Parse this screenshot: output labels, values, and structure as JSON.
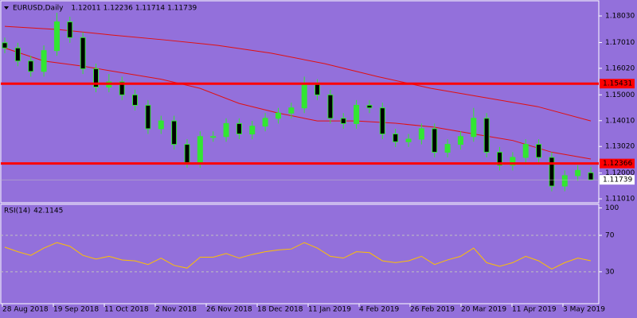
{
  "chart_data": [
    {
      "type": "candlestick",
      "symbol": "EURUSD,Daily",
      "categories": [
        "28 Aug 2018",
        "19 Sep 2018",
        "11 Oct 2018",
        "2 Nov 2018",
        "26 Nov 2018",
        "18 Dec 2018",
        "11 Jan 2019",
        "4 Feb 2019",
        "26 Feb 2019",
        "20 Mar 2019",
        "11 Apr 2019",
        "3 May 2019"
      ],
      "open": [
        1.17,
        1.168,
        1.163,
        1.159,
        1.167,
        1.178,
        1.172,
        1.16,
        1.153,
        1.155,
        1.15,
        1.146,
        1.137,
        1.14,
        1.131,
        1.124,
        1.134,
        1.134,
        1.139,
        1.135,
        1.138,
        1.141,
        1.143,
        1.145,
        1.154,
        1.15,
        1.141,
        1.139,
        1.146,
        1.145,
        1.135,
        1.132,
        1.133,
        1.137,
        1.128,
        1.131,
        1.134,
        1.141,
        1.128,
        1.123,
        1.126,
        1.131,
        1.126,
        1.115,
        1.119,
        1.12011
      ],
      "high": [
        1.172,
        1.17,
        1.165,
        1.169,
        1.1815,
        1.18,
        1.174,
        1.162,
        1.158,
        1.157,
        1.152,
        1.148,
        1.142,
        1.142,
        1.133,
        1.136,
        1.136,
        1.141,
        1.141,
        1.14,
        1.143,
        1.145,
        1.147,
        1.157,
        1.156,
        1.152,
        1.143,
        1.148,
        1.148,
        1.147,
        1.137,
        1.135,
        1.139,
        1.139,
        1.133,
        1.136,
        1.145,
        1.143,
        1.13,
        1.128,
        1.133,
        1.133,
        1.128,
        1.121,
        1.123,
        1.12236
      ],
      "low": [
        1.166,
        1.161,
        1.157,
        1.157,
        1.165,
        1.17,
        1.158,
        1.151,
        1.151,
        1.148,
        1.144,
        1.135,
        1.135,
        1.129,
        1.122,
        1.122,
        1.132,
        1.132,
        1.133,
        1.133,
        1.136,
        1.139,
        1.141,
        1.143,
        1.148,
        1.139,
        1.137,
        1.137,
        1.143,
        1.133,
        1.13,
        1.13,
        1.131,
        1.126,
        1.126,
        1.129,
        1.132,
        1.126,
        1.121,
        1.121,
        1.124,
        1.124,
        1.113,
        1.113,
        1.117,
        1.11714
      ],
      "close": [
        1.168,
        1.163,
        1.159,
        1.167,
        1.178,
        1.172,
        1.16,
        1.153,
        1.155,
        1.15,
        1.146,
        1.137,
        1.14,
        1.131,
        1.124,
        1.134,
        1.134,
        1.139,
        1.135,
        1.138,
        1.141,
        1.143,
        1.145,
        1.154,
        1.15,
        1.141,
        1.139,
        1.146,
        1.145,
        1.135,
        1.132,
        1.133,
        1.137,
        1.128,
        1.131,
        1.134,
        1.141,
        1.128,
        1.123,
        1.126,
        1.131,
        1.126,
        1.115,
        1.119,
        1.121,
        1.11739
      ],
      "candle_color": "#32e632",
      "moving_averages": [
        {
          "color": "#e01010",
          "values": [
            1.1763,
            1.1751,
            1.173,
            1.1711,
            1.169,
            1.166,
            1.162,
            1.157,
            1.1525,
            1.149,
            1.1455,
            1.14
          ]
        },
        {
          "color": "#e01010",
          "values": [
            1.168,
            1.163,
            1.161,
            1.1585,
            1.156,
            1.1525,
            1.1467,
            1.143,
            1.14,
            1.14,
            1.1391,
            1.1376,
            1.135,
            1.1325,
            1.128,
            1.1254
          ]
        }
      ],
      "hlines": [
        {
          "value": 1.15431,
          "color": "#ff0000"
        },
        {
          "value": 1.12366,
          "color": "#ff0000"
        }
      ],
      "ylim": [
        1.1086,
        1.1855
      ],
      "yticks": [
        {
          "value": 1.1803,
          "label": "1.18030"
        },
        {
          "value": 1.1701,
          "label": "1.17010"
        },
        {
          "value": 1.1602,
          "label": "1.16020"
        },
        {
          "value": 1.15,
          "label": "1.15000"
        },
        {
          "value": 1.1401,
          "label": "1.14010"
        },
        {
          "value": 1.1302,
          "label": "1.13020"
        },
        {
          "value": 1.12,
          "label": "1.12000"
        },
        {
          "value": 1.1101,
          "label": "1.11010"
        }
      ]
    },
    {
      "type": "line",
      "title": "RSI(14)",
      "color": "#ffc000",
      "values": [
        57,
        52,
        48,
        56,
        62,
        58,
        48,
        44,
        47,
        43,
        42,
        38,
        45,
        37,
        34,
        46,
        46,
        50,
        45,
        49,
        52,
        54,
        55,
        62,
        56,
        47,
        45,
        52,
        51,
        42,
        40,
        42,
        47,
        38,
        43,
        47,
        56,
        40,
        36,
        40,
        47,
        42,
        33,
        40,
        45,
        42.1145
      ],
      "ylim": [
        -5,
        104
      ],
      "yticks": [
        100,
        70,
        30
      ],
      "levels": [
        70,
        30
      ]
    }
  ]
}
